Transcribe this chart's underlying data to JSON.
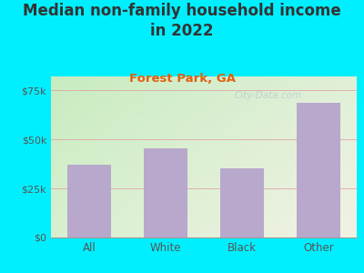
{
  "title": "Median non-family household income\nin 2022",
  "subtitle": "Forest Park, GA",
  "categories": [
    "All",
    "White",
    "Black",
    "Other"
  ],
  "values": [
    37000,
    45500,
    35000,
    68500
  ],
  "bar_color": "#b8a8cc",
  "background_outer": "#00efff",
  "background_inner_top_left": "#c8ecc0",
  "background_inner_bottom_right": "#f0f0e0",
  "title_fontsize": 12,
  "subtitle_fontsize": 9.5,
  "subtitle_color": "#e06010",
  "title_color": "#333333",
  "tick_label_color": "#555555",
  "ylim": [
    0,
    82000
  ],
  "yticks": [
    0,
    25000,
    50000,
    75000
  ],
  "ytick_labels": [
    "$0",
    "$25k",
    "$50k",
    "$75k"
  ],
  "grid_color": "#e0a0a8",
  "watermark": "City-Data.com",
  "watermark_color": "#aabbcc"
}
